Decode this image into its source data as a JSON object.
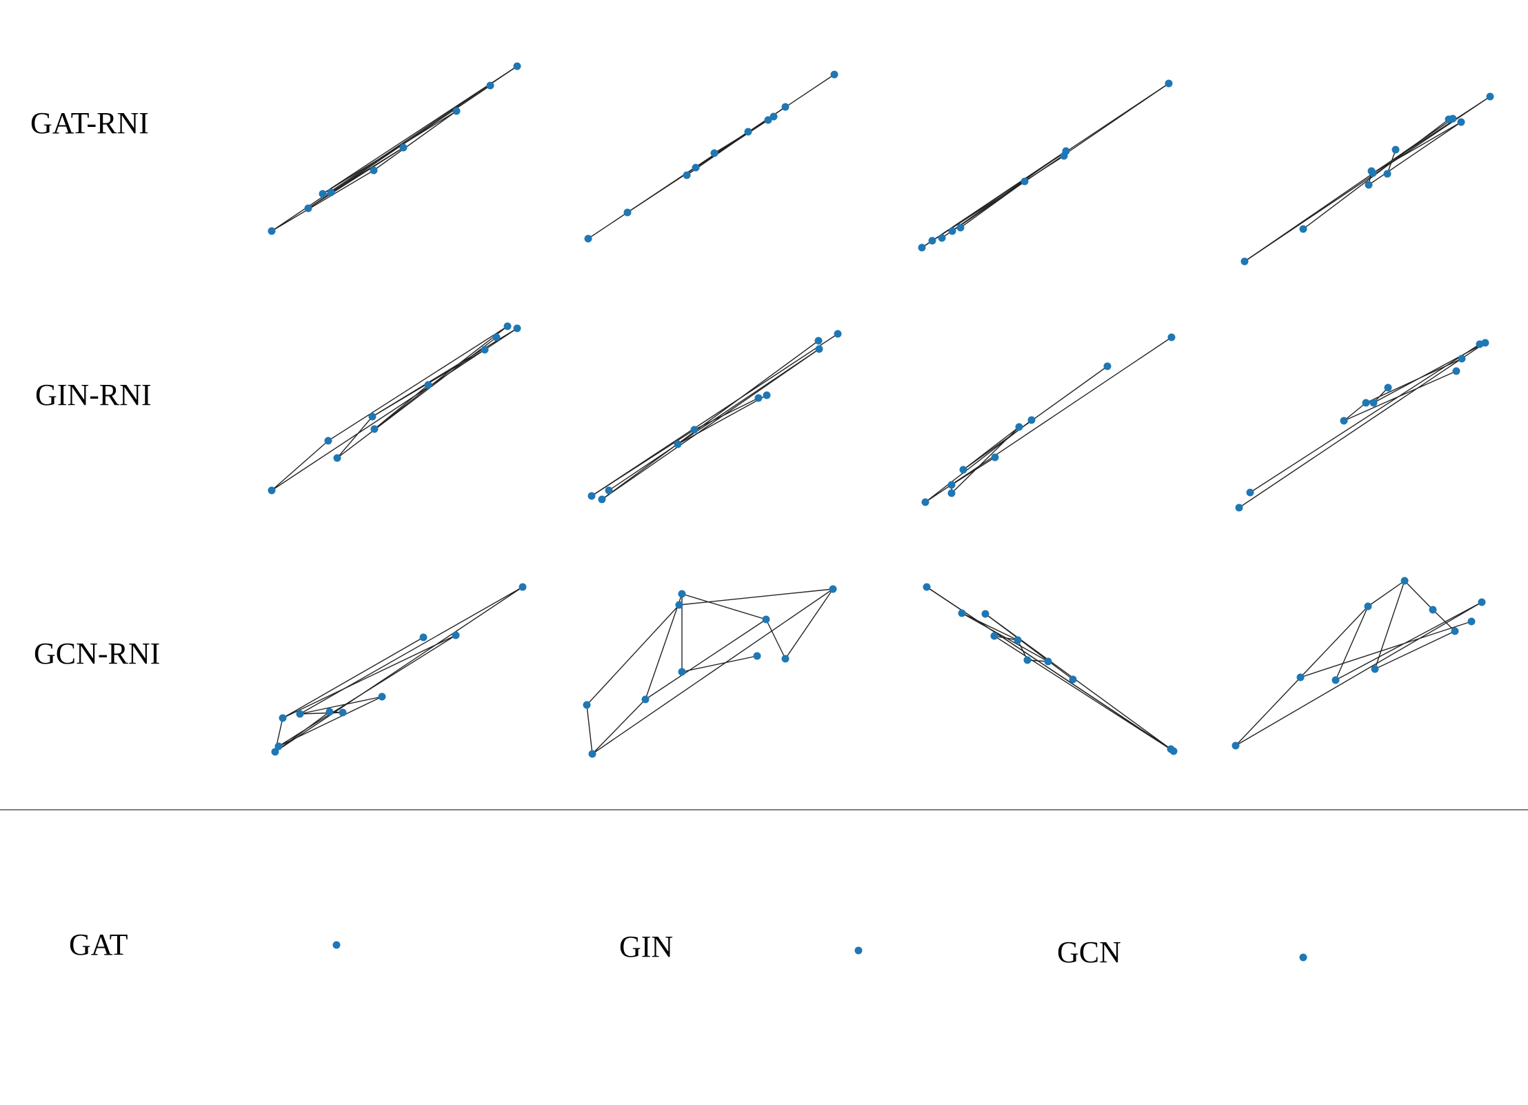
{
  "row_labels": [
    "GAT-RNI",
    "GIN-RNI",
    "GCN-RNI"
  ],
  "bottom_labels": [
    "GAT",
    "GIN",
    "GCN"
  ],
  "colors": {
    "node": "#1f77b4",
    "edge": "#222222",
    "divider": "#555555"
  }
}
